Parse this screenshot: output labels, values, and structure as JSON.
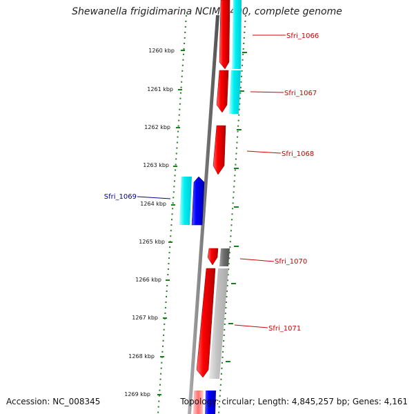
{
  "title": "Shewanella frigidimarina NCIMB 400, complete genome",
  "footer": {
    "accession": "Accession: NC_008345",
    "summary": "Topology: circular; Length: 4,845,257 bp; Genes: 4,161"
  },
  "ruler": {
    "ticks": [
      {
        "label": "1260 kbp"
      },
      {
        "label": "1261 kbp"
      },
      {
        "label": "1262 kbp"
      },
      {
        "label": "1263 kbp"
      },
      {
        "label": "1264 kbp"
      },
      {
        "label": "1265 kbp"
      },
      {
        "label": "1266 kbp"
      },
      {
        "label": "1267 kbp"
      },
      {
        "label": "1268 kbp"
      },
      {
        "label": "1269 kbp"
      }
    ]
  },
  "genes": [
    {
      "label": "Sfri_1066",
      "color": "#cc0000"
    },
    {
      "label": "Sfri_1067",
      "color": "#cc0000"
    },
    {
      "label": "Sfri_1068",
      "color": "#cc0000"
    },
    {
      "label": "Sfri_1069",
      "color": "#00008b"
    },
    {
      "label": "Sfri_1070",
      "color": "#cc0000"
    },
    {
      "label": "Sfri_1071",
      "color": "#cc0000"
    }
  ],
  "colors": {
    "forward_gene": "#ff0000",
    "reverse_gene": "#0000ff",
    "cyan_feature": "#00e5ee",
    "gray_feature": "#808080",
    "light_gray_feature": "#c0c0c0",
    "backbone": "#808080",
    "ruler_green": "#1a7f1a"
  }
}
